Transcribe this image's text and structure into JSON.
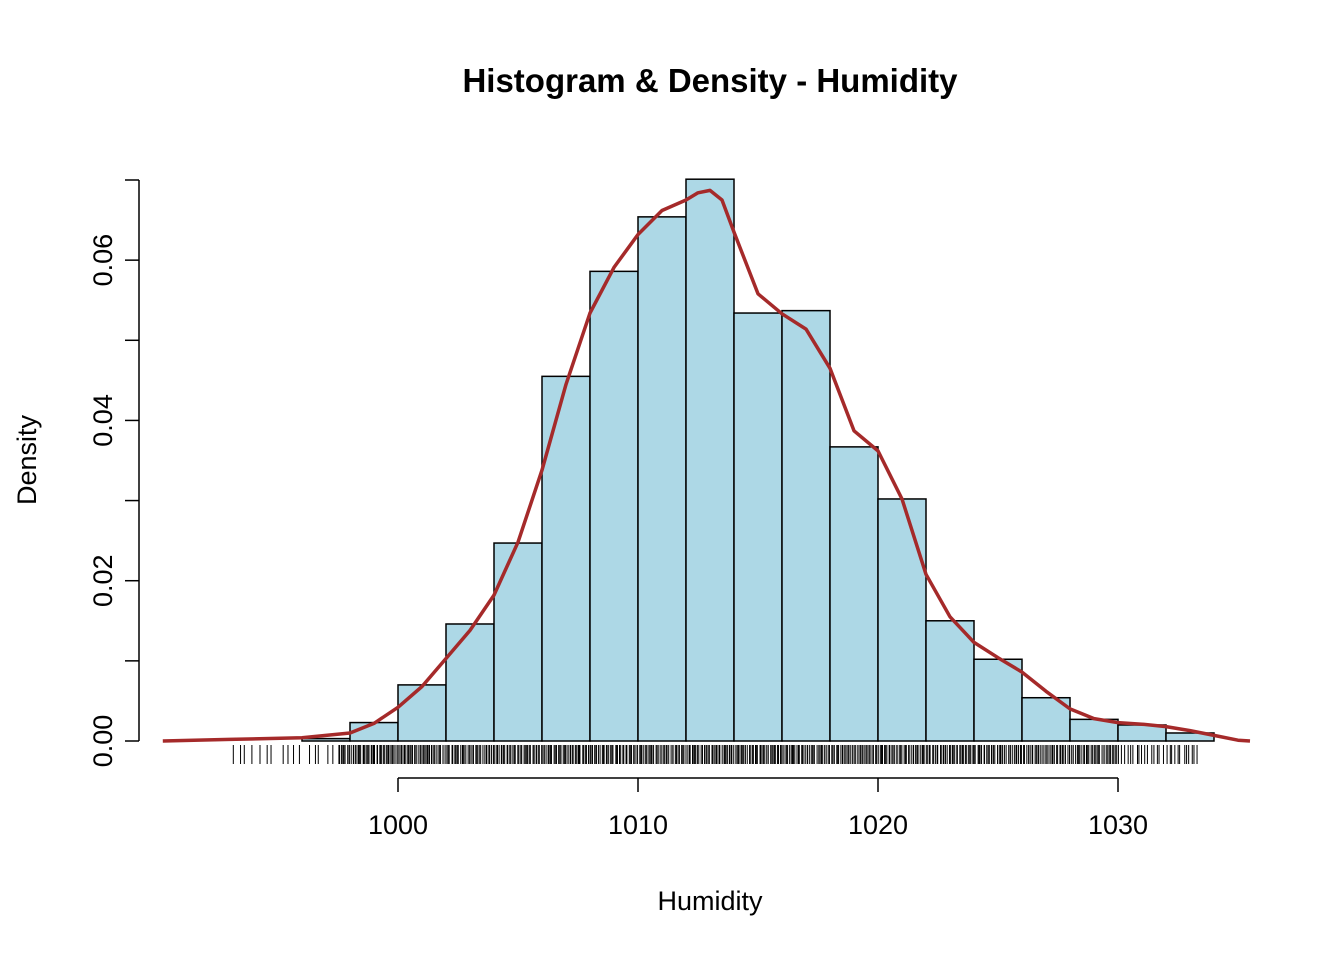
{
  "chart_data": {
    "type": "histogram",
    "title": "Histogram & Density - Humidity",
    "xlabel": "Humidity",
    "ylabel": "Density",
    "xlim": [
      990,
      1036
    ],
    "ylim": [
      0,
      0.07
    ],
    "x_ticks": [
      1000,
      1010,
      1020,
      1030
    ],
    "x_tick_labels": [
      "1000",
      "1010",
      "1020",
      "1030"
    ],
    "y_ticks": [
      0.0,
      0.01,
      0.02,
      0.03,
      0.04,
      0.05,
      0.06,
      0.07
    ],
    "y_tick_labels": [
      "0.00",
      "",
      "0.02",
      "",
      "0.04",
      "",
      "0.06",
      ""
    ],
    "bins": [
      {
        "from": 996,
        "to": 998,
        "density": 0.0003
      },
      {
        "from": 998,
        "to": 1000,
        "density": 0.0023
      },
      {
        "from": 1000,
        "to": 1002,
        "density": 0.007
      },
      {
        "from": 1002,
        "to": 1004,
        "density": 0.0146
      },
      {
        "from": 1004,
        "to": 1006,
        "density": 0.0247
      },
      {
        "from": 1006,
        "to": 1008,
        "density": 0.0455
      },
      {
        "from": 1008,
        "to": 1010,
        "density": 0.0586
      },
      {
        "from": 1010,
        "to": 1012,
        "density": 0.0654
      },
      {
        "from": 1012,
        "to": 1014,
        "density": 0.0701
      },
      {
        "from": 1014,
        "to": 1016,
        "density": 0.0534
      },
      {
        "from": 1016,
        "to": 1018,
        "density": 0.0537
      },
      {
        "from": 1018,
        "to": 1020,
        "density": 0.0367
      },
      {
        "from": 1020,
        "to": 1022,
        "density": 0.0302
      },
      {
        "from": 1022,
        "to": 1024,
        "density": 0.015
      },
      {
        "from": 1024,
        "to": 1026,
        "density": 0.0102
      },
      {
        "from": 1026,
        "to": 1028,
        "density": 0.0054
      },
      {
        "from": 1028,
        "to": 1030,
        "density": 0.0027
      },
      {
        "from": 1030,
        "to": 1032,
        "density": 0.002
      },
      {
        "from": 1032,
        "to": 1034,
        "density": 0.001
      }
    ],
    "density_curve": {
      "x": [
        990.2,
        993,
        996,
        998,
        999,
        1000,
        1001,
        1002,
        1003,
        1004,
        1005,
        1006,
        1007,
        1008,
        1009,
        1010,
        1011,
        1012,
        1012.5,
        1013,
        1013.5,
        1014,
        1015,
        1016,
        1017,
        1018,
        1019,
        1020,
        1021,
        1022,
        1023,
        1024,
        1025,
        1026,
        1027,
        1028,
        1029,
        1030,
        1031,
        1032,
        1033,
        1034,
        1035,
        1035.5
      ],
      "y": [
        0.0,
        0.0002,
        0.0004,
        0.001,
        0.0022,
        0.0042,
        0.0068,
        0.0103,
        0.0138,
        0.0182,
        0.0248,
        0.0338,
        0.0445,
        0.0534,
        0.0591,
        0.0632,
        0.0662,
        0.0675,
        0.0684,
        0.0687,
        0.0675,
        0.0635,
        0.0558,
        0.0533,
        0.0514,
        0.0465,
        0.0387,
        0.0362,
        0.0302,
        0.0208,
        0.0155,
        0.0123,
        0.0104,
        0.0086,
        0.0062,
        0.004,
        0.0028,
        0.0023,
        0.0021,
        0.0018,
        0.0013,
        0.0007,
        0.0001,
        0.0
      ]
    },
    "rug_ranges": [
      {
        "from": 993,
        "to": 997.5,
        "count": 16
      },
      {
        "from": 997.5,
        "to": 1001,
        "count": 60
      },
      {
        "from": 1001,
        "to": 1024.8,
        "count": 380
      },
      {
        "from": 1024.8,
        "to": 1030,
        "count": 80
      },
      {
        "from": 1030,
        "to": 1033.4,
        "count": 28
      }
    ],
    "bar_color": "#add8e6",
    "density_color": "#a52a2a",
    "grid": false,
    "legend": "none"
  }
}
